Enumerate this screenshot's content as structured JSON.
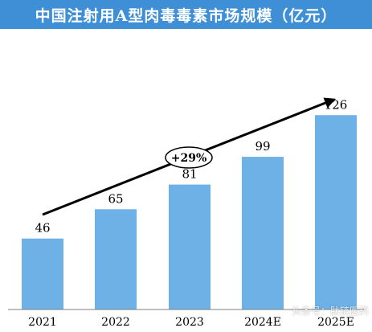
{
  "title": "中国注射用A型肉毒毒素市场规模（亿元）",
  "growth_label": "+29%",
  "watermark_text": "头条号：肽链医药",
  "colors": {
    "title_bar": "#3e8fd6",
    "bar": "#6db1e6",
    "arrow": "#000000"
  },
  "chart_data": {
    "type": "bar",
    "title": "中国注射用A型肉毒毒素市场规模（亿元）",
    "categories": [
      "2021",
      "2022",
      "2023",
      "2024E",
      "2025E"
    ],
    "values": [
      46,
      65,
      81,
      99,
      126
    ],
    "xlabel": "",
    "ylabel": "",
    "ylim": [
      0,
      135
    ],
    "grid": false,
    "annotation": "+29%"
  }
}
